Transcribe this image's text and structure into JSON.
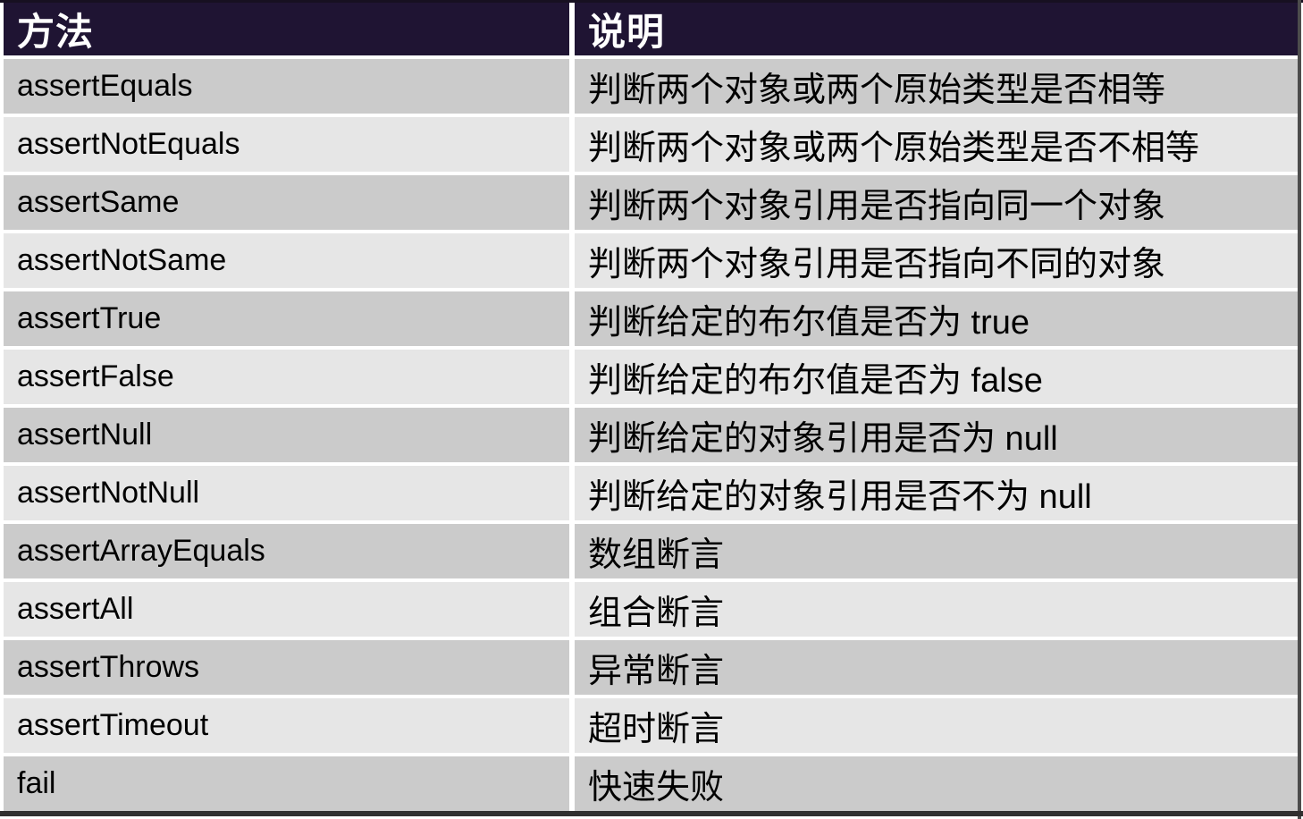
{
  "colors": {
    "header_bg": "#1f1433",
    "header_text": "#ffffff",
    "row_dark": "#cbcbcb",
    "row_light": "#e6e6e6",
    "cell_text": "#000000",
    "frame_dark": "#303030"
  },
  "table": {
    "header": {
      "method": "方法",
      "description": "说明"
    },
    "rows": [
      {
        "method": "assertEquals",
        "description": "判断两个对象或两个原始类型是否相等"
      },
      {
        "method": "assertNotEquals",
        "description": "判断两个对象或两个原始类型是否不相等"
      },
      {
        "method": "assertSame",
        "description": "判断两个对象引用是否指向同一个对象"
      },
      {
        "method": "assertNotSame",
        "description": "判断两个对象引用是否指向不同的对象"
      },
      {
        "method": "assertTrue",
        "description": "判断给定的布尔值是否为 true"
      },
      {
        "method": "assertFalse",
        "description": "判断给定的布尔值是否为 false"
      },
      {
        "method": "assertNull",
        "description": "判断给定的对象引用是否为 null"
      },
      {
        "method": "assertNotNull",
        "description": "判断给定的对象引用是否不为 null"
      },
      {
        "method": "assertArrayEquals",
        "description": "数组断言"
      },
      {
        "method": "assertAll",
        "description": "组合断言"
      },
      {
        "method": "assertThrows",
        "description": "异常断言"
      },
      {
        "method": "assertTimeout",
        "description": "超时断言"
      },
      {
        "method": "fail",
        "description": "快速失败"
      }
    ]
  }
}
